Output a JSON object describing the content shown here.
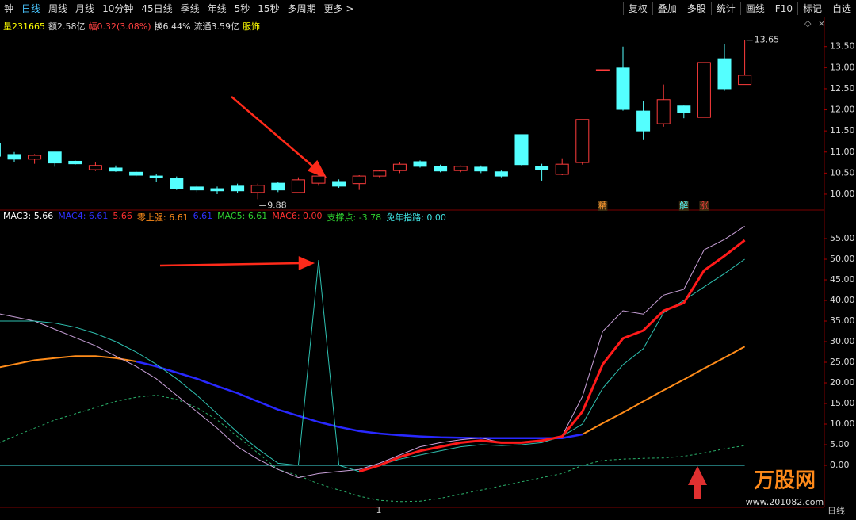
{
  "toolbar": {
    "tabs": [
      "钟",
      "日线",
      "周线",
      "月线",
      "10分钟",
      "45日线",
      "季线",
      "年线",
      "5秒",
      "15秒",
      "多周期",
      "更多 >"
    ],
    "actions": [
      "复权",
      "叠加",
      "多股",
      "统计",
      "画线",
      "F10",
      "标记",
      "自选"
    ]
  },
  "info": [
    {
      "text": "量231665",
      "color": "#ffff00"
    },
    {
      "text": "额2.58亿",
      "color": "#dddddd"
    },
    {
      "text": "幅0.32(3.08%)",
      "color": "#ff4040"
    },
    {
      "text": "换6.44%",
      "color": "#dddddd"
    },
    {
      "text": "流通3.59亿",
      "color": "#dddddd"
    },
    {
      "text": "服饰",
      "color": "#ffff00"
    }
  ],
  "chart_data": [
    {
      "type": "candlestick",
      "up_color": "#ff3c3c",
      "down_color": "#54ffff",
      "open": [
        11.2,
        10.94,
        10.83,
        11.0,
        10.78,
        10.58,
        10.62,
        10.52,
        10.43,
        10.38,
        10.17,
        10.13,
        10.19,
        10.04,
        10.26,
        10.04,
        10.26,
        10.3,
        10.25,
        10.43,
        10.56,
        10.77,
        10.66,
        10.56,
        10.64,
        10.53,
        11.41,
        10.66,
        10.47,
        10.75,
        12.95,
        12.99,
        11.97,
        11.67,
        12.09,
        11.82,
        13.21,
        12.6
      ],
      "high": [
        11.3,
        11.0,
        10.95,
        11.0,
        10.8,
        10.75,
        10.68,
        10.55,
        10.48,
        10.42,
        10.2,
        10.18,
        10.25,
        10.25,
        10.3,
        10.4,
        10.5,
        10.35,
        10.45,
        10.58,
        10.75,
        10.8,
        10.7,
        10.68,
        10.68,
        10.56,
        11.41,
        10.72,
        10.85,
        11.77,
        12.95,
        13.5,
        12.2,
        12.6,
        12.1,
        13.12,
        13.55,
        13.65
      ],
      "low": [
        10.85,
        10.75,
        10.72,
        10.65,
        10.7,
        10.55,
        10.53,
        10.42,
        10.3,
        10.1,
        10.05,
        10.0,
        10.03,
        9.88,
        10.05,
        10.02,
        10.2,
        10.15,
        10.1,
        10.4,
        10.5,
        10.63,
        10.52,
        10.52,
        10.5,
        10.4,
        10.68,
        10.32,
        10.45,
        10.7,
        12.95,
        11.98,
        11.3,
        11.6,
        11.8,
        11.82,
        12.45,
        12.6
      ],
      "close": [
        10.9,
        10.83,
        10.92,
        10.74,
        10.72,
        10.68,
        10.55,
        10.45,
        10.39,
        10.13,
        10.1,
        10.08,
        10.08,
        10.21,
        10.1,
        10.34,
        10.43,
        10.19,
        10.43,
        10.55,
        10.71,
        10.66,
        10.55,
        10.66,
        10.55,
        10.43,
        10.7,
        10.58,
        10.71,
        11.77,
        12.95,
        12.01,
        11.5,
        12.24,
        11.94,
        13.12,
        12.5,
        12.82
      ],
      "signals": [
        null,
        null,
        null,
        null,
        null,
        null,
        null,
        null,
        null,
        null,
        null,
        null,
        null,
        null,
        null,
        null,
        null,
        null,
        null,
        null,
        null,
        null,
        null,
        null,
        null,
        null,
        null,
        null,
        null,
        null,
        {
          "text": "精",
          "color": "#ff9a30"
        },
        null,
        null,
        null,
        {
          "text": "解",
          "color": "#54ffff"
        },
        {
          "text": "涨",
          "color": "#ff4040"
        },
        null,
        null
      ],
      "annotations": [
        {
          "label": "9.88",
          "value": 9.88
        },
        {
          "label": "13.65",
          "value": 13.65
        }
      ],
      "ylim": [
        9.68,
        14.19
      ],
      "yticks": [
        {
          "value": 10,
          "label": "10.00"
        },
        {
          "value": 10.5,
          "label": "10.50"
        },
        {
          "value": 11,
          "label": "11.00"
        },
        {
          "value": 11.5,
          "label": "11.50"
        },
        {
          "value": 12,
          "label": "12.00"
        },
        {
          "value": 12.5,
          "label": "12.50"
        },
        {
          "value": 13,
          "label": "13.00"
        },
        {
          "value": 13.5,
          "label": "13.50"
        }
      ]
    },
    {
      "type": "line",
      "legend": [
        {
          "text": "MAC3: 5.66",
          "color": "#ffffff"
        },
        {
          "text": "MAC4: 6.61",
          "color": "#3030ff"
        },
        {
          "text": "5.66",
          "color": "#ff3030"
        },
        {
          "text": "零上强: 6.61",
          "color": "#ff8c1a"
        },
        {
          "text": "6.61",
          "color": "#3030ff"
        },
        {
          "text": "MAC5: 6.61",
          "color": "#30d030"
        },
        {
          "text": "MAC6: 0.00",
          "color": "#ff3030"
        },
        {
          "text": "支撑点: -3.78",
          "color": "#30d030"
        },
        {
          "text": "免年指路: 0.00",
          "color": "#40e0e0"
        }
      ],
      "series": [
        {
          "color": "#40e0e0",
          "width": 1,
          "values": [
            0,
            0,
            0,
            0,
            0,
            0,
            0,
            0,
            0,
            0,
            0,
            0,
            0,
            0,
            0,
            0,
            0,
            0,
            0,
            0,
            0,
            0,
            0,
            0,
            0,
            0,
            0,
            0,
            0,
            0,
            0,
            0,
            0,
            0,
            0,
            0,
            0,
            0
          ]
        },
        {
          "color": "#2ab06a",
          "width": 1,
          "dash": true,
          "values": [
            5,
            7,
            9,
            11,
            12.5,
            14,
            15.5,
            16.5,
            17,
            16,
            14,
            11,
            7,
            3,
            -1,
            -2.5,
            -4.5,
            -6,
            -7.5,
            -8.5,
            -8.8,
            -8.7,
            -8,
            -7,
            -6,
            -5,
            -4,
            -3,
            -2,
            0,
            1.2,
            1.5,
            1.7,
            1.8,
            2.2,
            3,
            4,
            4.8
          ]
        },
        {
          "color": "#ff8c1a",
          "width": 2,
          "values": [
            23.5,
            24.5,
            25.5,
            26,
            26.5,
            26.5,
            26,
            25.2,
            null,
            null,
            null,
            null,
            null,
            null,
            null,
            null,
            null,
            null,
            null,
            null,
            null,
            null,
            null,
            null,
            null,
            null,
            null,
            null,
            null,
            7.5,
            10.2,
            12.8,
            15.5,
            18.2,
            20.8,
            23.5,
            26.1,
            28.8
          ]
        },
        {
          "color": "#2828ff",
          "width": 2.5,
          "values": [
            null,
            null,
            null,
            null,
            null,
            null,
            null,
            25.2,
            24,
            22.5,
            21,
            19.2,
            17.5,
            15.5,
            13.5,
            12,
            10.5,
            9.3,
            8.3,
            7.7,
            7.3,
            7,
            6.8,
            6.7,
            6.6,
            6.6,
            6.6,
            6.6,
            6.6,
            7.5,
            null,
            null,
            null,
            null,
            null,
            null,
            null,
            null
          ]
        },
        {
          "color": "#c8a0d8",
          "width": 1,
          "values": [
            37,
            36,
            35,
            33,
            31,
            29,
            26.5,
            24,
            21,
            17,
            13,
            9,
            4.5,
            1.5,
            -1,
            -3,
            -2,
            -1.5,
            -1,
            0.5,
            2.5,
            4.5,
            5.5,
            6.2,
            6.7,
            5.5,
            5.5,
            6,
            7.1,
            16.7,
            32.5,
            37.5,
            36.7,
            41.3,
            42.7,
            52.3,
            54.8,
            58
          ]
        },
        {
          "color": "#2ec0b0",
          "width": 1,
          "values": [
            35,
            35,
            35,
            34.5,
            33.5,
            32,
            30,
            27.5,
            24.5,
            21,
            17,
            12.5,
            8,
            4,
            0.5,
            0,
            49.8,
            0,
            -1.5,
            0,
            1.5,
            2.5,
            3.5,
            4.5,
            5,
            4.8,
            5,
            5.5,
            7,
            10,
            18.7,
            24.4,
            28.3,
            37,
            40,
            43.3,
            46.5,
            50
          ]
        },
        {
          "color": "#ff1a1a",
          "width": 3,
          "values": [
            null,
            null,
            null,
            null,
            null,
            null,
            null,
            null,
            null,
            null,
            null,
            null,
            null,
            null,
            null,
            null,
            null,
            null,
            -1.5,
            0,
            2,
            3.5,
            4.5,
            5.5,
            6,
            5.5,
            5.5,
            6,
            7,
            13,
            24.5,
            30.8,
            32.7,
            37.5,
            39.4,
            47.3,
            50.8,
            54.6
          ]
        }
      ],
      "ylim": [
        -11.15,
        61.35
      ],
      "yticks": [
        {
          "value": 0,
          "label": "0.00"
        },
        {
          "value": 5,
          "label": "5.00"
        },
        {
          "value": 10,
          "label": "10.00"
        },
        {
          "value": 15,
          "label": "15.00"
        },
        {
          "value": 20,
          "label": "20.00"
        },
        {
          "value": 25,
          "label": "25.00"
        },
        {
          "value": 30,
          "label": "30.00"
        },
        {
          "value": 35,
          "label": "35.00"
        },
        {
          "value": 40,
          "label": "40.00"
        },
        {
          "value": 45,
          "label": "45.00"
        },
        {
          "value": 50,
          "label": "50.00"
        },
        {
          "value": 55,
          "label": "55.00"
        }
      ]
    }
  ],
  "footer": {
    "marker": "1",
    "period": "日线"
  },
  "watermark": {
    "title": "万股网",
    "url": "www.201082.com"
  }
}
